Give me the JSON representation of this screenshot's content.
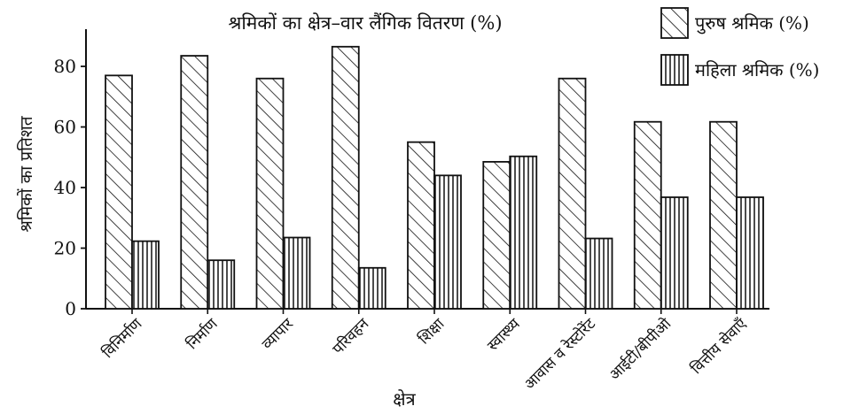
{
  "chart_data": {
    "type": "bar",
    "title": "श्रमिकों का क्षेत्र–वार लैंगिक वितरण (%)",
    "xlabel": "क्षेत्र",
    "ylabel": "श्रमिकों का प्रतिशत",
    "ylim": [
      0,
      90
    ],
    "yticks": [
      "0",
      "20",
      "40",
      "60",
      "80"
    ],
    "grid": false,
    "legend_position": "top-right",
    "categories": [
      "विनिर्माण",
      "निर्माण",
      "व्यापार",
      "परिवहन",
      "शिक्षा",
      "स्वास्थ्य",
      "आवास व रेस्टोरेंट",
      "आईटी/बीपीओ",
      "वित्तीय सेवाएँ"
    ],
    "series": [
      {
        "name": "पुरुष श्रमिक (%)",
        "pattern": "diagonal-hatch",
        "values": [
          77,
          83.5,
          76,
          86.5,
          55,
          48.5,
          76,
          61.7,
          61.7
        ]
      },
      {
        "name": "महिला श्रमिक (%)",
        "pattern": "vertical-hatch",
        "values": [
          22.3,
          16,
          23.5,
          13.5,
          44,
          50.3,
          23.2,
          36.8,
          36.8
        ]
      }
    ]
  }
}
